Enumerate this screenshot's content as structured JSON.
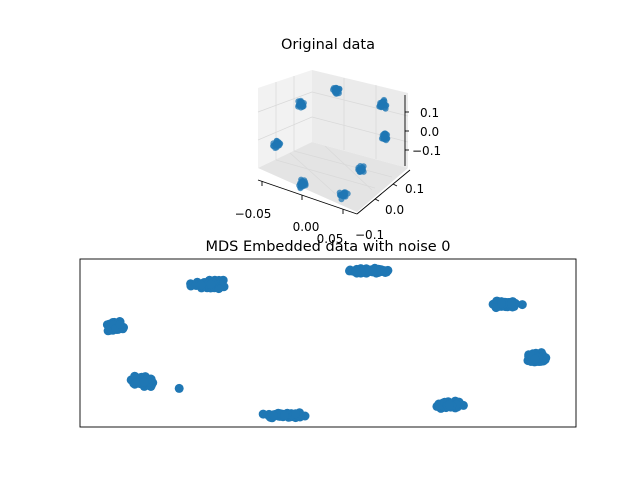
{
  "chart_data": [
    {
      "type": "scatter",
      "projection": "3d",
      "title": "Original data",
      "marker_color": "#1f77b4",
      "x_ticks": [
        "−0.05",
        "0.00",
        "0.05"
      ],
      "y_ticks": [
        "0.1",
        "0.0",
        "−0.1"
      ],
      "z_ticks": [
        "0.1",
        "0.0",
        "−0.1"
      ],
      "xlim": [
        -0.07,
        0.07
      ],
      "ylim": [
        -0.15,
        0.15
      ],
      "zlim": [
        -0.15,
        0.15
      ],
      "clusters": [
        {
          "x": -0.02,
          "y": 0.12,
          "z": 0.12
        },
        {
          "x": 0.04,
          "y": 0.12,
          "z": 0.12
        },
        {
          "x": -0.05,
          "y": 0.05,
          "z": 0.07
        },
        {
          "x": 0.06,
          "y": 0.04,
          "z": 0.05
        },
        {
          "x": -0.06,
          "y": -0.05,
          "z": -0.05
        },
        {
          "x": 0.05,
          "y": -0.06,
          "z": -0.04
        },
        {
          "x": -0.01,
          "y": -0.13,
          "z": -0.12
        },
        {
          "x": 0.04,
          "y": -0.12,
          "z": -0.12
        }
      ]
    },
    {
      "type": "scatter",
      "title": "MDS Embedded data with noise 0",
      "marker_color": "#1f77b4",
      "axes_visible": false,
      "xlim": [
        0,
        1
      ],
      "ylim": [
        0,
        1
      ],
      "clusters": [
        {
          "cx": 0.26,
          "cy": 0.85,
          "sx": 0.045,
          "sy": 0.035,
          "tilt": 0.15
        },
        {
          "cx": 0.58,
          "cy": 0.93,
          "sx": 0.055,
          "sy": 0.02,
          "tilt": 0.0
        },
        {
          "cx": 0.86,
          "cy": 0.73,
          "sx": 0.035,
          "sy": 0.03,
          "tilt": -0.2
        },
        {
          "cx": 0.07,
          "cy": 0.6,
          "sx": 0.025,
          "sy": 0.04,
          "tilt": 0.0
        },
        {
          "cx": 0.92,
          "cy": 0.41,
          "sx": 0.025,
          "sy": 0.04,
          "tilt": 0.0
        },
        {
          "cx": 0.13,
          "cy": 0.27,
          "sx": 0.035,
          "sy": 0.035,
          "tilt": -0.4
        },
        {
          "cx": 0.41,
          "cy": 0.07,
          "sx": 0.05,
          "sy": 0.025,
          "tilt": 0.0
        },
        {
          "cx": 0.74,
          "cy": 0.13,
          "sx": 0.045,
          "sy": 0.025,
          "tilt": 0.25
        }
      ],
      "outliers": [
        {
          "x": 0.2,
          "y": 0.23
        }
      ]
    }
  ]
}
